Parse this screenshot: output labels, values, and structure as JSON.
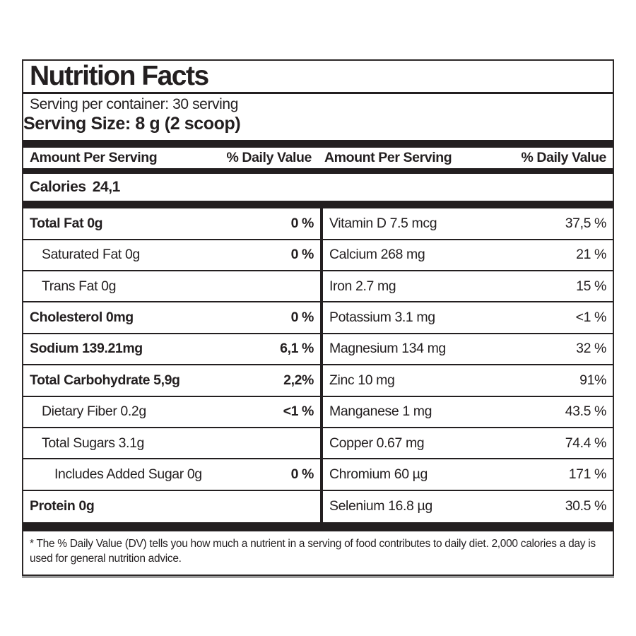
{
  "label": {
    "title": "Nutrition Facts",
    "serving_per_container": "Serving per container: 30 serving",
    "serving_size": "Serving Size: 8 g (2 scoop)",
    "column_header": {
      "amount": "Amount Per Serving",
      "daily_value": "% Daily Value"
    },
    "calories": {
      "label": "Calories",
      "value": "24,1"
    },
    "left_rows": [
      {
        "label": "Total Fat 0g",
        "value": "0 %",
        "bold": true,
        "indent": 0
      },
      {
        "label": "Saturated Fat 0g",
        "value": "0 %",
        "bold": false,
        "indent": 1
      },
      {
        "label": "Trans Fat 0g",
        "value": "",
        "bold": false,
        "indent": 1
      },
      {
        "label": "Cholesterol 0mg",
        "value": "0 %",
        "bold": true,
        "indent": 0
      },
      {
        "label": "Sodium 139.21mg",
        "value": "6,1 %",
        "bold": true,
        "indent": 0
      },
      {
        "label": "Total Carbohydrate 5,9g",
        "value": "2,2%",
        "bold": true,
        "indent": 0
      },
      {
        "label": "Dietary Fiber 0.2g",
        "value": "<1 %",
        "bold": false,
        "indent": 1
      },
      {
        "label": "Total Sugars 3.1g",
        "value": "",
        "bold": false,
        "indent": 1
      },
      {
        "label": "Includes Added Sugar 0g",
        "value": "0 %",
        "bold": false,
        "indent": 2
      },
      {
        "label": "Protein 0g",
        "value": "",
        "bold": true,
        "indent": 0
      }
    ],
    "right_rows": [
      {
        "label": "Vitamin D 7.5 mcg",
        "value": "37,5 %",
        "bold": false,
        "indent": 0
      },
      {
        "label": "Calcium 268 mg",
        "value": "21 %",
        "bold": false,
        "indent": 0
      },
      {
        "label": "Iron 2.7 mg",
        "value": "15 %",
        "bold": false,
        "indent": 0
      },
      {
        "label": "Potassium 3.1 mg",
        "value": "<1 %",
        "bold": false,
        "indent": 0
      },
      {
        "label": "Magnesium 134 mg",
        "value": "32 %",
        "bold": false,
        "indent": 0
      },
      {
        "label": "Zinc 10 mg",
        "value": "91%",
        "bold": false,
        "indent": 0
      },
      {
        "label": "Manganese 1 mg",
        "value": "43.5 %",
        "bold": false,
        "indent": 0
      },
      {
        "label": "Copper 0.67 mg",
        "value": "74.4 %",
        "bold": false,
        "indent": 0
      },
      {
        "label": "Chromium 60 µg",
        "value": "171 %",
        "bold": false,
        "indent": 0
      },
      {
        "label": "Selenium 16.8 µg",
        "value": "30.5 %",
        "bold": false,
        "indent": 0
      }
    ],
    "footnote": "* The % Daily Value (DV) tells you how much a nutrient in a serving of food contributes to daily diet. 2,000 calories a day is used for general nutrition advice."
  }
}
